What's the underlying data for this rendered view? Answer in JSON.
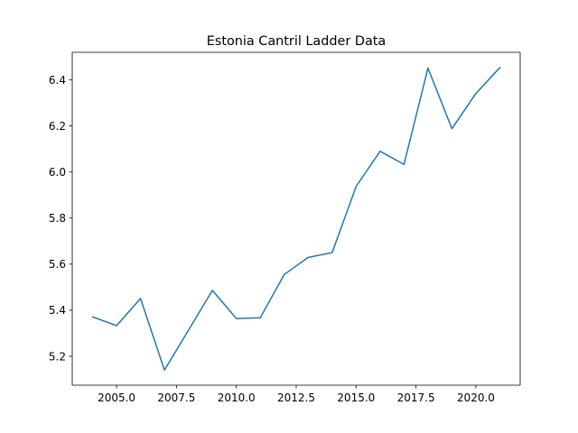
{
  "chart_data": {
    "type": "line",
    "title": "Estonia Cantril Ladder Data",
    "xlabel": "",
    "ylabel": "",
    "xlim": [
      2003.15,
      2021.85
    ],
    "ylim": [
      5.0745,
      6.5195
    ],
    "x_ticks": [
      2005.0,
      2007.5,
      2010.0,
      2012.5,
      2015.0,
      2017.5,
      2020.0
    ],
    "x_tick_labels": [
      "2005.0",
      "2007.5",
      "2010.0",
      "2012.5",
      "2015.0",
      "2017.5",
      "2020.0"
    ],
    "y_ticks": [
      5.2,
      5.4,
      5.6,
      5.8,
      6.0,
      6.2,
      6.4
    ],
    "y_tick_labels": [
      "5.2",
      "5.4",
      "5.6",
      "5.8",
      "6.0",
      "6.2",
      "6.4"
    ],
    "grid": false,
    "legend": "none",
    "series": [
      {
        "color": "#1f77b4",
        "x": [
          2004,
          2005,
          2006,
          2007,
          2008,
          2009,
          2010,
          2011,
          2012,
          2013,
          2014,
          2015,
          2016,
          2017,
          2018,
          2019,
          2020,
          2021
        ],
        "y": [
          5.371,
          5.333,
          5.451,
          5.14,
          5.313,
          5.486,
          5.364,
          5.367,
          5.555,
          5.629,
          5.65,
          5.937,
          6.09,
          6.033,
          6.451,
          6.188,
          6.341,
          6.453
        ]
      }
    ]
  }
}
